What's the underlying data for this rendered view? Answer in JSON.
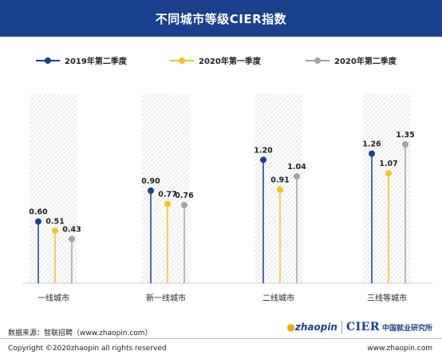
{
  "header": {
    "title": "不同城市等级CIER指数"
  },
  "colors": {
    "header_bg": "#1a3f8c",
    "series1": "#1a3f8c",
    "series2": "#f2c12e",
    "series3": "#a3a3a3",
    "bar_bg": "#e6e6e6"
  },
  "chart_data": {
    "type": "lollipop",
    "title": "不同城市等级CIER指数",
    "categories": [
      "一线城市",
      "新一线城市",
      "二线城市",
      "三线等城市"
    ],
    "series": [
      {
        "name": "2019年第二季度",
        "values": [
          0.6,
          0.9,
          1.2,
          1.26
        ],
        "labels": [
          "0.60",
          "0.90",
          "1.20",
          "1.26"
        ]
      },
      {
        "name": "2020年第一季度",
        "values": [
          0.51,
          0.77,
          0.91,
          1.07
        ],
        "labels": [
          "0.51",
          "0.77",
          "0.91",
          "1.07"
        ]
      },
      {
        "name": "2020年第二季度",
        "values": [
          0.43,
          0.76,
          1.04,
          1.35
        ],
        "labels": [
          "0.43",
          "0.76",
          "1.04",
          "1.35"
        ]
      }
    ],
    "legend_position": "top",
    "grid": false
  },
  "footer": {
    "source": "数据来源：智联招聘（www.zhaopin.com）",
    "zhaopin_logo": "zhaopin",
    "cier_logo": "CIER",
    "cier_cn": "中国就业研究所",
    "copyright": "Copyright ©2020zhaopin all rights reserved",
    "site": "www.zhaopin.com"
  }
}
